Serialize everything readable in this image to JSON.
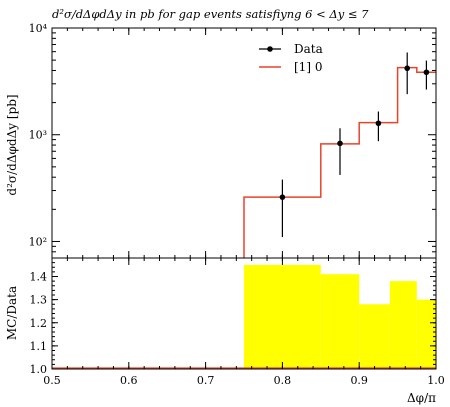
{
  "chart_data": [
    {
      "type": "line",
      "panel": "main",
      "title": "d²σ/dΔφdΔy in pb for gap events satisfiyng 6 < Δy ≤ 7",
      "ylabel": "d²σ/dΔφdΔy [pb]",
      "yscale": "log",
      "ylim": [
        70,
        10000
      ],
      "xlim": [
        0.5,
        1.0
      ],
      "y_ticks": [
        {
          "value": 100,
          "label": "10²"
        },
        {
          "value": 1000,
          "label": "10³"
        },
        {
          "value": 10000,
          "label": "10⁴"
        }
      ],
      "legend": {
        "position": "top-right",
        "entries": [
          "Data",
          "[1] 0"
        ]
      },
      "series": [
        {
          "name": "Data",
          "style": "points-with-errorbars",
          "color": "#000000",
          "points": [
            {
              "x": 0.8,
              "y": 260,
              "ylo": 110,
              "yhi": 380
            },
            {
              "x": 0.875,
              "y": 830,
              "ylo": 420,
              "yhi": 1150
            },
            {
              "x": 0.925,
              "y": 1280,
              "ylo": 870,
              "yhi": 1650
            },
            {
              "x": 0.9625,
              "y": 4200,
              "ylo": 2400,
              "yhi": 5900
            },
            {
              "x": 0.9875,
              "y": 3850,
              "ylo": 2650,
              "yhi": 4950
            }
          ]
        },
        {
          "name": "[1] 0",
          "style": "histogram-step",
          "color": "#e8442a",
          "bins": [
            {
              "x0": 0.75,
              "x1": 0.85,
              "y": 260
            },
            {
              "x0": 0.85,
              "x1": 0.9,
              "y": 820
            },
            {
              "x0": 0.9,
              "x1": 0.95,
              "y": 1300
            },
            {
              "x0": 0.95,
              "x1": 0.975,
              "y": 4250
            },
            {
              "x0": 0.975,
              "x1": 1.0,
              "y": 3850
            }
          ]
        }
      ]
    },
    {
      "type": "bar",
      "panel": "ratio",
      "ylabel": "MC/Data",
      "xlabel": "Δφ/π",
      "ylim": [
        1.0,
        1.48
      ],
      "xlim": [
        0.5,
        1.0
      ],
      "fill_color": "#ffff00",
      "baseline_color": "#e8442a",
      "y_ticks": [
        1.0,
        1.1,
        1.2,
        1.3,
        1.4
      ],
      "x_ticks": [
        0.5,
        0.6,
        0.7,
        0.8,
        0.9,
        1.0
      ],
      "bands": [
        {
          "x0": 0.75,
          "x1": 0.85,
          "y": 1.45
        },
        {
          "x0": 0.85,
          "x1": 0.9,
          "y": 1.41
        },
        {
          "x0": 0.9,
          "x1": 0.94,
          "y": 1.28
        },
        {
          "x0": 0.94,
          "x1": 0.975,
          "y": 1.38
        },
        {
          "x0": 0.975,
          "x1": 1.0,
          "y": 1.3
        }
      ]
    }
  ]
}
